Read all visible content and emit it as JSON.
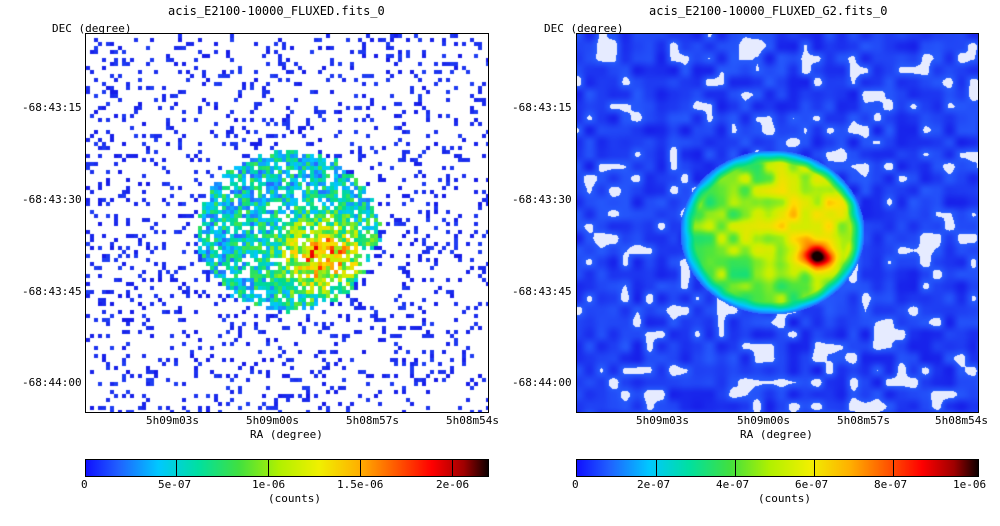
{
  "panels": [
    {
      "title": "acis_E2100-10000_FLUXED.fits_0",
      "ylabel": "DEC (degree)",
      "xlabel": "RA (degree)",
      "yticks": [
        "-68:43:15",
        "-68:43:30",
        "-68:43:45",
        "-68:44:00"
      ],
      "xticks": [
        "5h09m03s",
        "5h09m00s",
        "5h08m57s",
        "5h08m54s"
      ],
      "colorbar": {
        "ticks": [
          "0",
          "5e-07",
          "1e-06",
          "1.5e-06",
          "2e-06"
        ],
        "label": "(counts)"
      }
    },
    {
      "title": "acis_E2100-10000_FLUXED_G2.fits_0",
      "ylabel": "DEC (degree)",
      "xlabel": "RA (degree)",
      "yticks": [
        "-68:43:15",
        "-68:43:30",
        "-68:43:45",
        "-68:44:00"
      ],
      "xticks": [
        "5h09m03s",
        "5h09m00s",
        "5h08m57s",
        "5h08m54s"
      ],
      "colorbar": {
        "ticks": [
          "0",
          "2e-07",
          "4e-07",
          "6e-07",
          "8e-07",
          "1e-06"
        ],
        "label": "(counts)"
      }
    }
  ],
  "colors": {
    "low": "#1010e0",
    "mid": "#00d080",
    "high": "#ff0000",
    "peak": "#200000"
  }
}
